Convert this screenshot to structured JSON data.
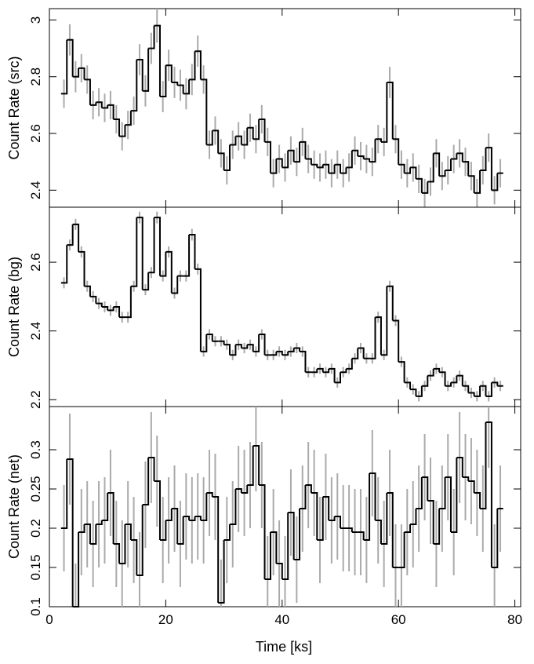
{
  "chart_data": {
    "type": "line",
    "style": "step-histogram-with-error-bars",
    "colors": {
      "line": "#000000",
      "error": "#aaaaaa"
    },
    "xlabel": "Time [ks]",
    "xlim": [
      0,
      81
    ],
    "xticks": [
      0,
      20,
      40,
      60,
      80
    ],
    "x": [
      2.5,
      3.5,
      4.5,
      5.5,
      6.5,
      7.5,
      8.5,
      9.5,
      10.5,
      11.5,
      12.5,
      13.5,
      14.5,
      15.5,
      16.5,
      17.5,
      18.5,
      19.5,
      20.5,
      21.5,
      22.5,
      23.5,
      24.5,
      25.5,
      26.5,
      27.5,
      28.5,
      29.5,
      30.5,
      31.5,
      32.5,
      33.5,
      34.5,
      35.5,
      36.5,
      37.5,
      38.5,
      39.5,
      40.5,
      41.5,
      42.5,
      43.5,
      44.5,
      45.5,
      46.5,
      47.5,
      48.5,
      49.5,
      50.5,
      51.5,
      52.5,
      53.5,
      54.5,
      55.5,
      56.5,
      57.5,
      58.5,
      59.5,
      60.5,
      61.5,
      62.5,
      63.5,
      64.5,
      65.5,
      66.5,
      67.5,
      68.5,
      69.5,
      70.5,
      71.5,
      72.5,
      73.5,
      74.5,
      75.5,
      76.5,
      77.5,
      78.5
    ],
    "panels": [
      {
        "ylabel": "Count Rate (src)",
        "ylim": [
          2.34,
          3.04
        ],
        "yticks": [
          2.4,
          2.6,
          2.8,
          3.0
        ],
        "yticklabels": [
          "2.4",
          "2.6",
          "2.8",
          "3"
        ],
        "y": [
          2.74,
          2.93,
          2.8,
          2.83,
          2.79,
          2.7,
          2.71,
          2.69,
          2.7,
          2.65,
          2.59,
          2.63,
          2.68,
          2.86,
          2.75,
          2.9,
          2.98,
          2.73,
          2.84,
          2.78,
          2.77,
          2.74,
          2.79,
          2.89,
          2.79,
          2.56,
          2.61,
          2.53,
          2.47,
          2.56,
          2.59,
          2.56,
          2.62,
          2.58,
          2.65,
          2.57,
          2.46,
          2.51,
          2.48,
          2.54,
          2.5,
          2.57,
          2.51,
          2.49,
          2.48,
          2.49,
          2.46,
          2.49,
          2.46,
          2.48,
          2.54,
          2.52,
          2.51,
          2.5,
          2.58,
          2.57,
          2.78,
          2.58,
          2.49,
          2.46,
          2.48,
          2.44,
          2.39,
          2.43,
          2.53,
          2.45,
          2.47,
          2.51,
          2.53,
          2.5,
          2.45,
          2.39,
          2.47,
          2.55,
          2.4,
          2.46
        ],
        "err": [
          0.05,
          0.055,
          0.055,
          0.05,
          0.05,
          0.05,
          0.05,
          0.05,
          0.05,
          0.05,
          0.05,
          0.05,
          0.05,
          0.055,
          0.055,
          0.055,
          0.06,
          0.055,
          0.055,
          0.055,
          0.055,
          0.055,
          0.055,
          0.055,
          0.05,
          0.05,
          0.05,
          0.05,
          0.05,
          0.05,
          0.05,
          0.05,
          0.05,
          0.05,
          0.05,
          0.05,
          0.05,
          0.05,
          0.05,
          0.05,
          0.05,
          0.05,
          0.05,
          0.05,
          0.05,
          0.05,
          0.05,
          0.05,
          0.05,
          0.05,
          0.05,
          0.05,
          0.05,
          0.05,
          0.05,
          0.05,
          0.055,
          0.05,
          0.05,
          0.05,
          0.05,
          0.05,
          0.05,
          0.05,
          0.05,
          0.05,
          0.05,
          0.05,
          0.05,
          0.05,
          0.05,
          0.05,
          0.05,
          0.05,
          0.05,
          0.05
        ]
      },
      {
        "ylabel": "Count Rate (bg)",
        "ylim": [
          2.18,
          2.76
        ],
        "yticks": [
          2.2,
          2.4,
          2.6
        ],
        "yticklabels": [
          "2.2",
          "2.4",
          "2.6"
        ],
        "y": [
          2.54,
          2.65,
          2.71,
          2.63,
          2.53,
          2.5,
          2.48,
          2.47,
          2.46,
          2.47,
          2.44,
          2.44,
          2.53,
          2.73,
          2.52,
          2.57,
          2.73,
          2.56,
          2.63,
          2.51,
          2.56,
          2.56,
          2.68,
          2.58,
          2.34,
          2.39,
          2.37,
          2.37,
          2.36,
          2.33,
          2.36,
          2.35,
          2.36,
          2.34,
          2.39,
          2.33,
          2.33,
          2.34,
          2.33,
          2.34,
          2.35,
          2.34,
          2.28,
          2.28,
          2.29,
          2.28,
          2.29,
          2.25,
          2.28,
          2.29,
          2.32,
          2.35,
          2.32,
          2.32,
          2.44,
          2.33,
          2.53,
          2.43,
          2.31,
          2.25,
          2.23,
          2.21,
          2.24,
          2.27,
          2.29,
          2.28,
          2.24,
          2.25,
          2.27,
          2.24,
          2.22,
          2.21,
          2.24,
          2.21,
          2.25,
          2.24
        ],
        "err": [
          0.016,
          0.016,
          0.016,
          0.016,
          0.016,
          0.016,
          0.016,
          0.016,
          0.016,
          0.016,
          0.016,
          0.016,
          0.016,
          0.017,
          0.016,
          0.016,
          0.017,
          0.016,
          0.016,
          0.016,
          0.016,
          0.016,
          0.017,
          0.016,
          0.015,
          0.015,
          0.015,
          0.015,
          0.015,
          0.015,
          0.015,
          0.015,
          0.015,
          0.015,
          0.015,
          0.015,
          0.015,
          0.015,
          0.015,
          0.015,
          0.015,
          0.015,
          0.015,
          0.015,
          0.015,
          0.015,
          0.015,
          0.015,
          0.015,
          0.015,
          0.015,
          0.015,
          0.015,
          0.015,
          0.016,
          0.015,
          0.016,
          0.016,
          0.015,
          0.015,
          0.015,
          0.015,
          0.015,
          0.015,
          0.015,
          0.015,
          0.015,
          0.015,
          0.015,
          0.015,
          0.015,
          0.015,
          0.015,
          0.015,
          0.015,
          0.015
        ]
      },
      {
        "ylabel": "Count Rate (net)",
        "ylim": [
          0.1,
          0.355
        ],
        "yticks": [
          0.1,
          0.15,
          0.2,
          0.25,
          0.3
        ],
        "yticklabels": [
          "0.1",
          "0.15",
          "0.2",
          "0.25",
          "0.3"
        ],
        "y": [
          0.2,
          0.288,
          0.1,
          0.195,
          0.205,
          0.18,
          0.205,
          0.21,
          0.245,
          0.18,
          0.155,
          0.205,
          0.185,
          0.14,
          0.23,
          0.29,
          0.26,
          0.185,
          0.21,
          0.225,
          0.18,
          0.215,
          0.21,
          0.215,
          0.21,
          0.245,
          0.24,
          0.105,
          0.185,
          0.205,
          0.25,
          0.245,
          0.255,
          0.305,
          0.255,
          0.135,
          0.195,
          0.155,
          0.135,
          0.22,
          0.16,
          0.225,
          0.255,
          0.245,
          0.185,
          0.24,
          0.21,
          0.215,
          0.2,
          0.2,
          0.195,
          0.195,
          0.185,
          0.27,
          0.21,
          0.18,
          0.245,
          0.15,
          0.15,
          0.195,
          0.205,
          0.225,
          0.265,
          0.235,
          0.18,
          0.225,
          0.265,
          0.195,
          0.29,
          0.265,
          0.26,
          0.245,
          0.225,
          0.335,
          0.15,
          0.225
        ],
        "err": [
          0.055,
          0.058,
          0.055,
          0.055,
          0.055,
          0.055,
          0.055,
          0.055,
          0.055,
          0.055,
          0.055,
          0.055,
          0.055,
          0.055,
          0.055,
          0.058,
          0.058,
          0.055,
          0.055,
          0.055,
          0.055,
          0.055,
          0.055,
          0.055,
          0.055,
          0.055,
          0.055,
          0.055,
          0.055,
          0.055,
          0.055,
          0.055,
          0.055,
          0.058,
          0.055,
          0.055,
          0.055,
          0.055,
          0.055,
          0.055,
          0.055,
          0.055,
          0.055,
          0.055,
          0.055,
          0.055,
          0.055,
          0.055,
          0.055,
          0.055,
          0.055,
          0.055,
          0.055,
          0.055,
          0.055,
          0.055,
          0.055,
          0.055,
          0.055,
          0.055,
          0.055,
          0.055,
          0.055,
          0.055,
          0.055,
          0.055,
          0.055,
          0.055,
          0.058,
          0.055,
          0.055,
          0.055,
          0.055,
          0.058,
          0.055,
          0.055
        ]
      }
    ]
  }
}
